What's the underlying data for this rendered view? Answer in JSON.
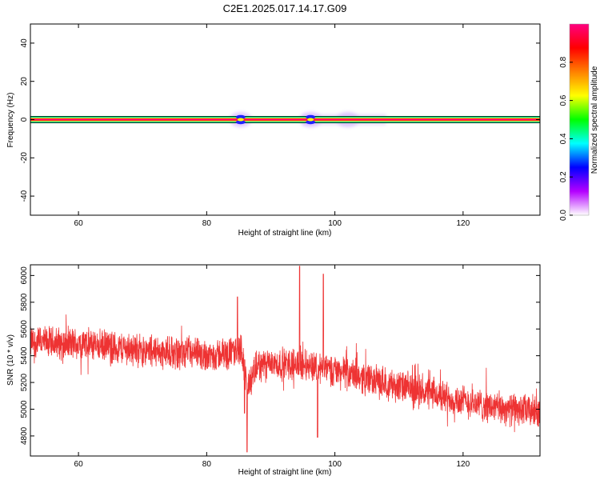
{
  "title": "C2E1.2025.017.14.17.G09",
  "chart_data": [
    {
      "type": "heatmap",
      "xlabel": "Height of straight line (km)",
      "ylabel": "Frequency (Hz)",
      "xlim": [
        52.5,
        132
      ],
      "ylim": [
        -50,
        50
      ],
      "xticks": [
        60,
        80,
        100,
        120
      ],
      "yticks": [
        -40,
        -20,
        0,
        20,
        40
      ],
      "colorbar": {
        "label": "Normalized spectral amplitude",
        "range": [
          0,
          1
        ],
        "ticks": [
          "0.0",
          "0.2",
          "0.4",
          "0.6",
          "0.8"
        ],
        "tick_values": [
          0.0,
          0.2,
          0.4,
          0.6,
          0.8
        ],
        "colors": [
          "#ffffff",
          "#b400ff",
          "#0000ff",
          "#00ffff",
          "#00ff00",
          "#ffff00",
          "#ff8000",
          "#ff0000",
          "#ff0080"
        ]
      },
      "band": {
        "center_hz": 0,
        "halfwidth_hz": 1.5
      },
      "features": [
        {
          "x": 85.3,
          "amplitude": 0.3
        },
        {
          "x": 96.2,
          "amplitude": 0.25
        },
        {
          "x": 102.0,
          "amplitude": 0.1
        }
      ]
    },
    {
      "type": "line",
      "xlabel": "Height of straight line (km)",
      "ylabel": "SNR (10 * v/v)",
      "xlim": [
        52.5,
        132
      ],
      "ylim": [
        4650,
        6080
      ],
      "xticks": [
        60,
        80,
        100,
        120
      ],
      "yticks": [
        4800,
        5000,
        5200,
        5400,
        5600,
        5800,
        6000
      ],
      "color": "#ee3333",
      "trend": {
        "x": [
          52.5,
          60,
          70,
          80,
          84,
          85.5,
          86.3,
          88,
          95,
          100,
          110,
          120,
          125,
          132
        ],
        "y": [
          5500,
          5490,
          5440,
          5400,
          5420,
          5450,
          5150,
          5330,
          5340,
          5290,
          5170,
          5060,
          5010,
          4980
        ]
      },
      "noise_amplitude": 110,
      "spikes": [
        {
          "x": 84.8,
          "y": 5840
        },
        {
          "x": 85.9,
          "y": 4970
        },
        {
          "x": 86.3,
          "y": 4680
        },
        {
          "x": 94.5,
          "y": 6070
        },
        {
          "x": 98.2,
          "y": 6010
        },
        {
          "x": 97.3,
          "y": 4790
        }
      ]
    }
  ]
}
